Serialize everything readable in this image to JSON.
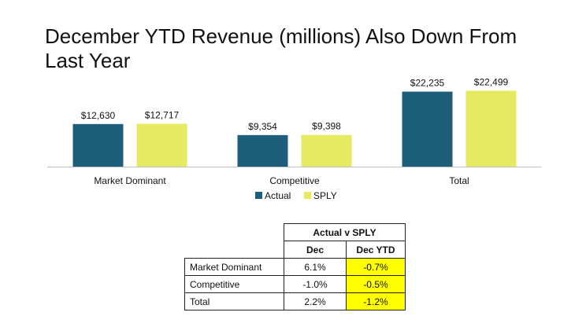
{
  "title": "December YTD Revenue (millions) Also Down From Last Year",
  "colors": {
    "actual": "#1d5e7a",
    "sply": "#e6ea61",
    "highlight": "#ffff00",
    "axis": "#bfbfbf",
    "text": "#111111"
  },
  "chart_data": {
    "type": "bar",
    "title": "December YTD Revenue (millions) Also Down From Last Year",
    "categories": [
      "Market Dominant",
      "Competitive",
      "Total"
    ],
    "series": [
      {
        "name": "Actual",
        "values": [
          12630,
          9354,
          22235
        ],
        "labels": [
          "$12,630",
          "$9,354",
          "$22,235"
        ]
      },
      {
        "name": "SPLY",
        "values": [
          12717,
          9398,
          22499
        ],
        "labels": [
          "$12,717",
          "$9,398",
          "$22,499"
        ]
      }
    ],
    "xlabel": "",
    "ylabel": "",
    "ylim": [
      0,
      24000
    ],
    "grid": false,
    "legend": "bottom"
  },
  "table": {
    "group_header": "Actual v SPLY",
    "columns": [
      "Dec",
      "Dec YTD"
    ],
    "rows": [
      {
        "label": "Market Dominant",
        "dec": "6.1%",
        "ytd": "-0.7%"
      },
      {
        "label": "Competitive",
        "dec": "-1.0%",
        "ytd": "-0.5%"
      },
      {
        "label": "Total",
        "dec": "2.2%",
        "ytd": "-1.2%"
      }
    ]
  }
}
